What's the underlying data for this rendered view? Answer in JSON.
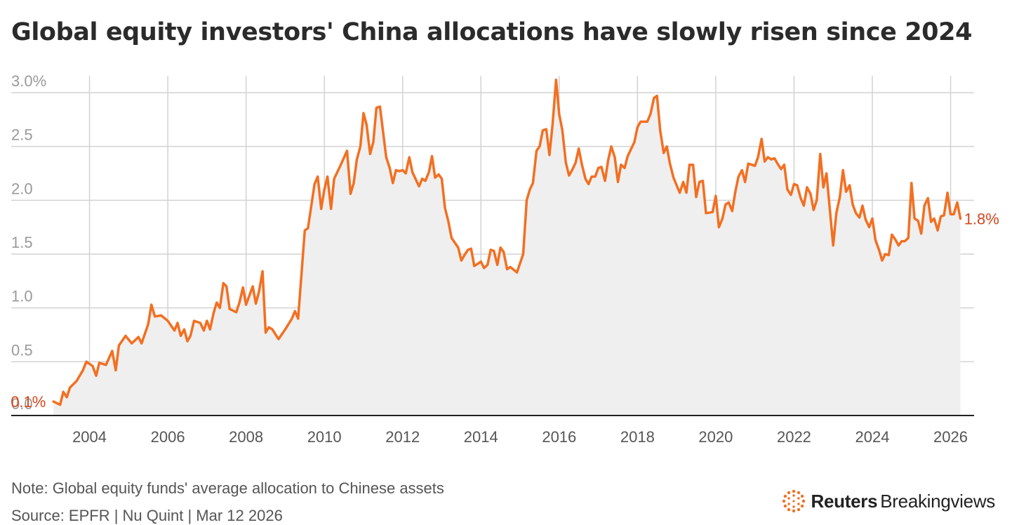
{
  "title": "Global equity investors' China allocations have slowly risen since 2024",
  "note": "Note: Global equity funds' average allocation to Chinese assets",
  "source": "Source: EPFR | Nu Quint | Mar 12 2026",
  "brand": {
    "name_bold": "Reuters",
    "name_regular": "Breakingviews",
    "logo_icon": "reuters-dot-ring-icon"
  },
  "colors": {
    "line": "#f36f21",
    "area": "#efefef",
    "grid": "#d2d2d2",
    "callout": "#d6461b"
  },
  "chart_data": {
    "type": "area",
    "title": "Global equity investors' China allocations have slowly risen since 2024",
    "xlabel": "",
    "ylabel": "",
    "xlim": [
      2002,
      2026.6
    ],
    "ylim": [
      0,
      3.0
    ],
    "grid": true,
    "legend": "none",
    "x_ticks": [
      {
        "value": 2004,
        "label": "2004"
      },
      {
        "value": 2006,
        "label": "2006"
      },
      {
        "value": 2008,
        "label": "2008"
      },
      {
        "value": 2010,
        "label": "2010"
      },
      {
        "value": 2012,
        "label": "2012"
      },
      {
        "value": 2014,
        "label": "2014"
      },
      {
        "value": 2016,
        "label": "2016"
      },
      {
        "value": 2018,
        "label": "2018"
      },
      {
        "value": 2020,
        "label": "2020"
      },
      {
        "value": 2022,
        "label": "2022"
      },
      {
        "value": 2024,
        "label": "2024"
      },
      {
        "value": 2026,
        "label": "2026"
      }
    ],
    "y_ticks": [
      {
        "value": 0,
        "label": "0.0"
      },
      {
        "value": 0.5,
        "label": "0.5"
      },
      {
        "value": 1.0,
        "label": "1.0"
      },
      {
        "value": 1.5,
        "label": "1.5"
      },
      {
        "value": 2.0,
        "label": "2.0"
      },
      {
        "value": 2.5,
        "label": "2.5"
      },
      {
        "value": 3.0,
        "label": "3.0%"
      }
    ],
    "annotations": [
      {
        "text": "0.1%",
        "x": 2003.1,
        "y": 0.13,
        "anchor": "end"
      },
      {
        "text": "1.8%",
        "x": 2026.2,
        "y": 1.83,
        "anchor": "start"
      }
    ],
    "series": [
      {
        "values": [
          [
            2003.08,
            0.13
          ],
          [
            2003.25,
            0.1
          ],
          [
            2003.33,
            0.22
          ],
          [
            2003.42,
            0.17
          ],
          [
            2003.5,
            0.26
          ],
          [
            2003.67,
            0.32
          ],
          [
            2003.83,
            0.42
          ],
          [
            2003.92,
            0.5
          ],
          [
            2004.08,
            0.46
          ],
          [
            2004.17,
            0.37
          ],
          [
            2004.25,
            0.49
          ],
          [
            2004.42,
            0.47
          ],
          [
            2004.58,
            0.6
          ],
          [
            2004.67,
            0.42
          ],
          [
            2004.75,
            0.65
          ],
          [
            2004.92,
            0.74
          ],
          [
            2005.08,
            0.67
          ],
          [
            2005.25,
            0.73
          ],
          [
            2005.33,
            0.67
          ],
          [
            2005.5,
            0.85
          ],
          [
            2005.58,
            1.03
          ],
          [
            2005.67,
            0.92
          ],
          [
            2005.83,
            0.93
          ],
          [
            2006.0,
            0.88
          ],
          [
            2006.17,
            0.79
          ],
          [
            2006.25,
            0.86
          ],
          [
            2006.33,
            0.74
          ],
          [
            2006.42,
            0.8
          ],
          [
            2006.5,
            0.69
          ],
          [
            2006.58,
            0.74
          ],
          [
            2006.67,
            0.88
          ],
          [
            2006.83,
            0.86
          ],
          [
            2006.92,
            0.79
          ],
          [
            2007.0,
            0.88
          ],
          [
            2007.08,
            0.8
          ],
          [
            2007.17,
            0.95
          ],
          [
            2007.25,
            1.05
          ],
          [
            2007.33,
            1.0
          ],
          [
            2007.42,
            1.23
          ],
          [
            2007.5,
            1.2
          ],
          [
            2007.58,
            0.99
          ],
          [
            2007.75,
            0.96
          ],
          [
            2007.83,
            1.05
          ],
          [
            2007.92,
            1.19
          ],
          [
            2008.0,
            1.03
          ],
          [
            2008.08,
            1.11
          ],
          [
            2008.17,
            1.2
          ],
          [
            2008.25,
            1.04
          ],
          [
            2008.33,
            1.15
          ],
          [
            2008.42,
            1.34
          ],
          [
            2008.5,
            0.77
          ],
          [
            2008.58,
            0.82
          ],
          [
            2008.67,
            0.8
          ],
          [
            2008.83,
            0.71
          ],
          [
            2009.0,
            0.8
          ],
          [
            2009.17,
            0.9
          ],
          [
            2009.25,
            0.97
          ],
          [
            2009.33,
            0.9
          ],
          [
            2009.5,
            1.72
          ],
          [
            2009.58,
            1.74
          ],
          [
            2009.75,
            2.15
          ],
          [
            2009.83,
            2.22
          ],
          [
            2009.92,
            1.92
          ],
          [
            2010.0,
            2.1
          ],
          [
            2010.08,
            2.22
          ],
          [
            2010.17,
            1.92
          ],
          [
            2010.25,
            2.2
          ],
          [
            2010.42,
            2.33
          ],
          [
            2010.58,
            2.46
          ],
          [
            2010.67,
            2.06
          ],
          [
            2010.75,
            2.16
          ],
          [
            2010.83,
            2.38
          ],
          [
            2010.92,
            2.5
          ],
          [
            2011.0,
            2.81
          ],
          [
            2011.08,
            2.7
          ],
          [
            2011.17,
            2.43
          ],
          [
            2011.25,
            2.54
          ],
          [
            2011.33,
            2.86
          ],
          [
            2011.42,
            2.87
          ],
          [
            2011.58,
            2.4
          ],
          [
            2011.67,
            2.3
          ],
          [
            2011.75,
            2.16
          ],
          [
            2011.83,
            2.28
          ],
          [
            2011.92,
            2.27
          ],
          [
            2012.0,
            2.28
          ],
          [
            2012.08,
            2.25
          ],
          [
            2012.17,
            2.4
          ],
          [
            2012.25,
            2.26
          ],
          [
            2012.42,
            2.13
          ],
          [
            2012.5,
            2.2
          ],
          [
            2012.58,
            2.18
          ],
          [
            2012.67,
            2.26
          ],
          [
            2012.75,
            2.41
          ],
          [
            2012.83,
            2.21
          ],
          [
            2012.92,
            2.24
          ],
          [
            2013.0,
            2.2
          ],
          [
            2013.08,
            1.93
          ],
          [
            2013.17,
            1.8
          ],
          [
            2013.25,
            1.65
          ],
          [
            2013.42,
            1.56
          ],
          [
            2013.5,
            1.44
          ],
          [
            2013.58,
            1.49
          ],
          [
            2013.67,
            1.54
          ],
          [
            2013.75,
            1.55
          ],
          [
            2013.83,
            1.39
          ],
          [
            2013.92,
            1.41
          ],
          [
            2014.0,
            1.43
          ],
          [
            2014.08,
            1.37
          ],
          [
            2014.17,
            1.4
          ],
          [
            2014.25,
            1.54
          ],
          [
            2014.33,
            1.53
          ],
          [
            2014.42,
            1.4
          ],
          [
            2014.5,
            1.56
          ],
          [
            2014.58,
            1.52
          ],
          [
            2014.67,
            1.36
          ],
          [
            2014.75,
            1.38
          ],
          [
            2014.92,
            1.33
          ],
          [
            2015.08,
            1.5
          ],
          [
            2015.17,
            2.0
          ],
          [
            2015.25,
            2.1
          ],
          [
            2015.33,
            2.16
          ],
          [
            2015.42,
            2.46
          ],
          [
            2015.5,
            2.5
          ],
          [
            2015.58,
            2.65
          ],
          [
            2015.67,
            2.66
          ],
          [
            2015.75,
            2.42
          ],
          [
            2015.83,
            2.7
          ],
          [
            2015.92,
            3.12
          ],
          [
            2016.0,
            2.8
          ],
          [
            2016.08,
            2.65
          ],
          [
            2016.17,
            2.35
          ],
          [
            2016.25,
            2.23
          ],
          [
            2016.33,
            2.28
          ],
          [
            2016.42,
            2.35
          ],
          [
            2016.5,
            2.48
          ],
          [
            2016.58,
            2.33
          ],
          [
            2016.67,
            2.2
          ],
          [
            2016.75,
            2.15
          ],
          [
            2016.83,
            2.22
          ],
          [
            2016.92,
            2.22
          ],
          [
            2017.0,
            2.3
          ],
          [
            2017.08,
            2.31
          ],
          [
            2017.17,
            2.18
          ],
          [
            2017.25,
            2.37
          ],
          [
            2017.33,
            2.5
          ],
          [
            2017.42,
            2.4
          ],
          [
            2017.5,
            2.17
          ],
          [
            2017.58,
            2.33
          ],
          [
            2017.67,
            2.3
          ],
          [
            2017.75,
            2.41
          ],
          [
            2017.92,
            2.54
          ],
          [
            2018.0,
            2.68
          ],
          [
            2018.08,
            2.73
          ],
          [
            2018.25,
            2.73
          ],
          [
            2018.33,
            2.8
          ],
          [
            2018.42,
            2.95
          ],
          [
            2018.5,
            2.97
          ],
          [
            2018.58,
            2.65
          ],
          [
            2018.67,
            2.44
          ],
          [
            2018.75,
            2.5
          ],
          [
            2018.83,
            2.34
          ],
          [
            2018.92,
            2.21
          ],
          [
            2019.0,
            2.14
          ],
          [
            2019.08,
            2.07
          ],
          [
            2019.17,
            2.17
          ],
          [
            2019.25,
            2.07
          ],
          [
            2019.33,
            2.33
          ],
          [
            2019.42,
            2.33
          ],
          [
            2019.5,
            2.03
          ],
          [
            2019.58,
            2.17
          ],
          [
            2019.67,
            2.18
          ],
          [
            2019.75,
            1.88
          ],
          [
            2019.92,
            1.89
          ],
          [
            2020.0,
            2.04
          ],
          [
            2020.08,
            1.75
          ],
          [
            2020.17,
            1.83
          ],
          [
            2020.25,
            1.96
          ],
          [
            2020.33,
            1.98
          ],
          [
            2020.42,
            1.9
          ],
          [
            2020.5,
            2.08
          ],
          [
            2020.58,
            2.22
          ],
          [
            2020.67,
            2.28
          ],
          [
            2020.75,
            2.17
          ],
          [
            2020.83,
            2.34
          ],
          [
            2020.92,
            2.33
          ],
          [
            2021.0,
            2.32
          ],
          [
            2021.08,
            2.4
          ],
          [
            2021.17,
            2.57
          ],
          [
            2021.25,
            2.36
          ],
          [
            2021.33,
            2.4
          ],
          [
            2021.42,
            2.38
          ],
          [
            2021.5,
            2.39
          ],
          [
            2021.58,
            2.34
          ],
          [
            2021.67,
            2.29
          ],
          [
            2021.75,
            2.33
          ],
          [
            2021.83,
            2.1
          ],
          [
            2021.92,
            2.05
          ],
          [
            2022.0,
            2.15
          ],
          [
            2022.08,
            2.14
          ],
          [
            2022.17,
            2.02
          ],
          [
            2022.25,
            1.95
          ],
          [
            2022.33,
            2.12
          ],
          [
            2022.42,
            2.06
          ],
          [
            2022.5,
            1.91
          ],
          [
            2022.58,
            2.0
          ],
          [
            2022.67,
            2.43
          ],
          [
            2022.75,
            2.12
          ],
          [
            2022.83,
            2.25
          ],
          [
            2022.92,
            1.89
          ],
          [
            2023.0,
            1.58
          ],
          [
            2023.08,
            1.88
          ],
          [
            2023.17,
            2.03
          ],
          [
            2023.25,
            2.28
          ],
          [
            2023.33,
            2.08
          ],
          [
            2023.42,
            2.14
          ],
          [
            2023.5,
            1.96
          ],
          [
            2023.58,
            1.88
          ],
          [
            2023.67,
            1.84
          ],
          [
            2023.75,
            1.95
          ],
          [
            2023.83,
            1.82
          ],
          [
            2023.92,
            1.75
          ],
          [
            2024.0,
            1.83
          ],
          [
            2024.08,
            1.63
          ],
          [
            2024.17,
            1.54
          ],
          [
            2024.25,
            1.44
          ],
          [
            2024.33,
            1.5
          ],
          [
            2024.42,
            1.49
          ],
          [
            2024.5,
            1.68
          ],
          [
            2024.58,
            1.64
          ],
          [
            2024.67,
            1.58
          ],
          [
            2024.75,
            1.62
          ],
          [
            2024.83,
            1.62
          ],
          [
            2024.92,
            1.65
          ],
          [
            2025.0,
            2.16
          ],
          [
            2025.08,
            1.83
          ],
          [
            2025.17,
            1.81
          ],
          [
            2025.25,
            1.69
          ],
          [
            2025.33,
            1.95
          ],
          [
            2025.42,
            2.02
          ],
          [
            2025.5,
            1.8
          ],
          [
            2025.58,
            1.83
          ],
          [
            2025.67,
            1.72
          ],
          [
            2025.75,
            1.85
          ],
          [
            2025.83,
            1.86
          ],
          [
            2025.92,
            2.07
          ],
          [
            2026.0,
            1.87
          ],
          [
            2026.08,
            1.87
          ],
          [
            2026.17,
            1.98
          ],
          [
            2026.25,
            1.83
          ]
        ]
      }
    ]
  }
}
